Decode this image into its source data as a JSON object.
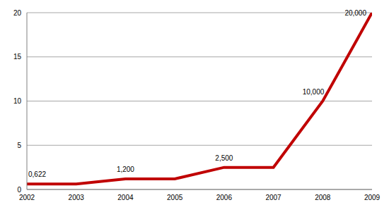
{
  "chart_data": {
    "type": "line",
    "x": [
      2002,
      2003,
      2004,
      2005,
      2006,
      2007,
      2008,
      2009
    ],
    "values": [
      0.622,
      0.622,
      1.2,
      1.2,
      2.5,
      2.5,
      10,
      20
    ],
    "value_labels": [
      "0,622",
      null,
      "1,200",
      null,
      "2,500",
      null,
      "10,000",
      "20,000"
    ],
    "data_labels": true,
    "color": "#c00000",
    "xlim": [
      2002,
      2009
    ],
    "xticks": [
      2002,
      2003,
      2004,
      2005,
      2006,
      2007,
      2008,
      2009
    ],
    "ylim": [
      0,
      20
    ],
    "yticks": [
      0,
      5,
      10,
      15,
      20
    ],
    "grid": true
  }
}
